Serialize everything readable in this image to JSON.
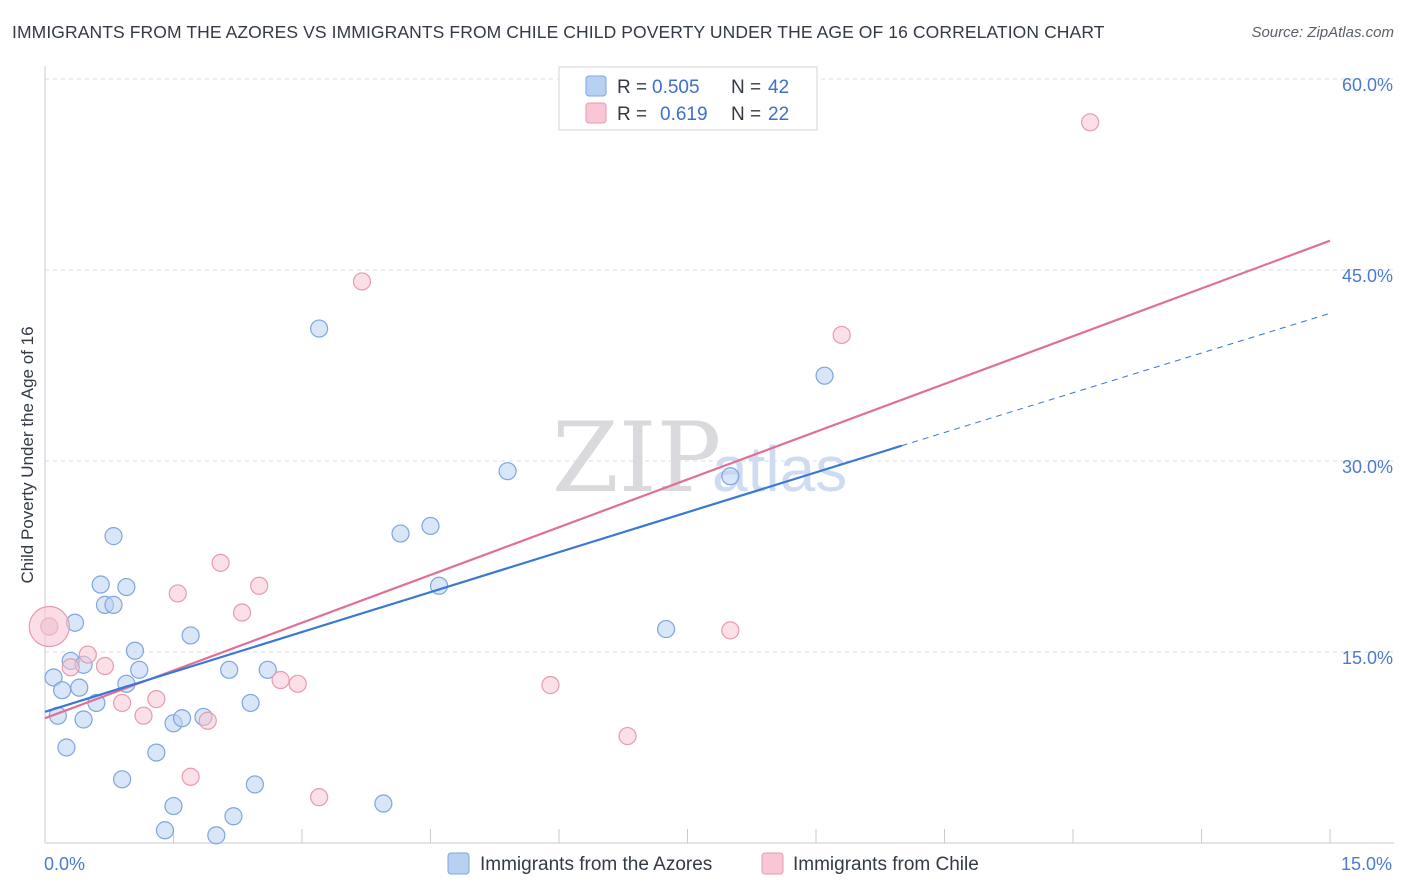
{
  "title": "IMMIGRANTS FROM THE AZORES VS IMMIGRANTS FROM CHILE CHILD POVERTY UNDER THE AGE OF 16 CORRELATION CHART",
  "source": "Source: ZipAtlas.com",
  "watermark": {
    "zip": "ZIP",
    "atlas": "atlas"
  },
  "colors": {
    "azores_fill": "#b8d1f2",
    "azores_stroke": "#7ea5df",
    "azores_line": "#3a78d4",
    "chile_fill": "#f8c6d4",
    "chile_stroke": "#e79ab1",
    "chile_line": "#e07098",
    "tick_text": "#4a7bd0",
    "grid": "#dcdde2"
  },
  "legend": {
    "rows": [
      {
        "r_label": "R =",
        "r_value": "0.505",
        "n_label": "N =",
        "n_value": "42"
      },
      {
        "r_label": "R =",
        "r_value": "0.619",
        "n_label": "N =",
        "n_value": "22"
      }
    ]
  },
  "bottom_legend": [
    "Immigrants from the Azores",
    "Immigrants from Chile"
  ],
  "chart_data": {
    "type": "scatter",
    "title": "IMMIGRANTS FROM THE AZORES VS IMMIGRANTS FROM CHILE CHILD POVERTY UNDER THE AGE OF 16 CORRELATION CHART",
    "xlabel": "",
    "ylabel": "Child Poverty Under the Age of 16",
    "xlim": [
      0,
      15
    ],
    "ylim": [
      0,
      60
    ],
    "x_tick_labels": [
      "0.0%",
      "15.0%"
    ],
    "y_ticks": [
      15,
      30,
      45,
      60
    ],
    "y_tick_labels": [
      "15.0%",
      "30.0%",
      "45.0%",
      "60.0%"
    ],
    "grid": true,
    "legend_position": "top-center",
    "series": [
      {
        "name": "Immigrants from the Azores",
        "r": 0.505,
        "n": 42,
        "trend": {
          "x": [
            0.0,
            10.0
          ],
          "y": [
            10.3,
            31.2
          ],
          "dashed_to": [
            15.0,
            41.6
          ]
        },
        "points": [
          [
            0.05,
            17.0
          ],
          [
            0.1,
            13.0
          ],
          [
            0.15,
            10.0
          ],
          [
            0.2,
            12.0
          ],
          [
            0.25,
            7.5
          ],
          [
            0.3,
            14.3
          ],
          [
            0.35,
            17.3
          ],
          [
            0.4,
            12.2
          ],
          [
            0.45,
            14.0
          ],
          [
            0.45,
            9.7
          ],
          [
            0.6,
            11.0
          ],
          [
            0.65,
            20.3
          ],
          [
            0.7,
            18.7
          ],
          [
            0.8,
            18.7
          ],
          [
            0.8,
            24.1
          ],
          [
            0.9,
            5.0
          ],
          [
            0.95,
            12.5
          ],
          [
            0.95,
            20.1
          ],
          [
            1.05,
            15.1
          ],
          [
            1.1,
            13.6
          ],
          [
            1.3,
            7.1
          ],
          [
            1.4,
            1.0
          ],
          [
            1.5,
            2.9
          ],
          [
            1.5,
            9.4
          ],
          [
            1.6,
            9.8
          ],
          [
            1.7,
            16.3
          ],
          [
            1.85,
            9.9
          ],
          [
            2.0,
            0.6
          ],
          [
            2.15,
            13.6
          ],
          [
            2.2,
            2.1
          ],
          [
            2.4,
            11.0
          ],
          [
            2.45,
            4.6
          ],
          [
            2.6,
            13.6
          ],
          [
            3.2,
            40.4
          ],
          [
            3.95,
            3.1
          ],
          [
            4.15,
            24.3
          ],
          [
            4.5,
            24.9
          ],
          [
            4.6,
            20.2
          ],
          [
            5.4,
            29.2
          ],
          [
            7.25,
            16.8
          ],
          [
            8.0,
            28.8
          ],
          [
            9.1,
            36.7
          ]
        ]
      },
      {
        "name": "Immigrants from Chile",
        "r": 0.619,
        "n": 22,
        "trend": {
          "x": [
            0.0,
            15.0
          ],
          "y": [
            9.8,
            47.3
          ]
        },
        "points": [
          [
            0.05,
            17.0
          ],
          [
            0.3,
            13.8
          ],
          [
            0.5,
            14.8
          ],
          [
            0.7,
            13.9
          ],
          [
            0.9,
            11.0
          ],
          [
            1.15,
            10.0
          ],
          [
            1.3,
            11.3
          ],
          [
            1.55,
            19.6
          ],
          [
            1.7,
            5.2
          ],
          [
            1.9,
            9.6
          ],
          [
            2.05,
            22.0
          ],
          [
            2.3,
            18.1
          ],
          [
            2.5,
            20.2
          ],
          [
            2.75,
            12.8
          ],
          [
            2.95,
            12.5
          ],
          [
            3.2,
            3.6
          ],
          [
            3.7,
            44.1
          ],
          [
            5.9,
            12.4
          ],
          [
            6.8,
            8.4
          ],
          [
            8.0,
            16.7
          ],
          [
            9.3,
            39.9
          ],
          [
            12.2,
            56.6
          ]
        ]
      }
    ]
  }
}
